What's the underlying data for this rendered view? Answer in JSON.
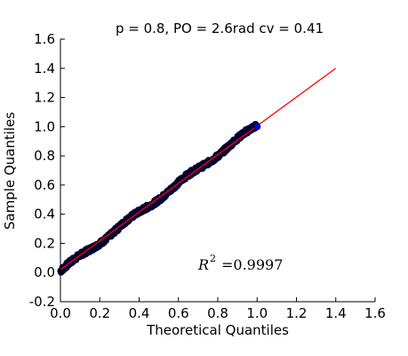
{
  "chart_data": {
    "type": "scatter",
    "title": "p = 0.8, PO = 2.6rad cv = 0.41",
    "xlabel": "Theoretical Quantiles",
    "ylabel": "Sample Quantiles",
    "xlim": [
      0.0,
      1.6
    ],
    "ylim": [
      -0.2,
      1.6
    ],
    "x_ticks": [
      "0.0",
      "0.2",
      "0.4",
      "0.6",
      "0.8",
      "1.0",
      "1.2",
      "1.4",
      "1.6"
    ],
    "y_ticks": [
      "-0.2",
      "0.0",
      "0.2",
      "0.4",
      "0.6",
      "0.8",
      "1.0",
      "1.2",
      "1.4",
      "1.6"
    ],
    "grid": false,
    "series": [
      {
        "kind": "points",
        "color": "#000033",
        "x_range": [
          0.0,
          1.0
        ],
        "y_range": [
          0.0,
          1.0
        ]
      },
      {
        "kind": "line",
        "color": "#ff0000",
        "x": [
          0.0,
          1.4
        ],
        "y": [
          0.02,
          1.4
        ]
      }
    ],
    "endpoint_marker": {
      "x": 1.0,
      "y": 1.0,
      "color": "#0000ff"
    },
    "annotation": {
      "base": "R",
      "sup": "2",
      "text": "=0.9997"
    }
  }
}
